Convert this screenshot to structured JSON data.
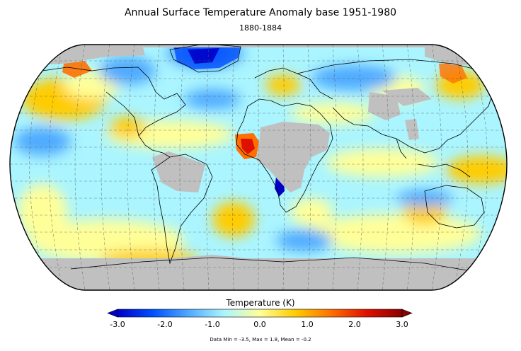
{
  "title": "Annual Surface Temperature Anomaly base 1951-1980",
  "subtitle": "1880-1884",
  "colorbar": {
    "label": "Temperature (K)",
    "ticks": [
      "-3.0",
      "-2.0",
      "-1.0",
      "0.0",
      "1.0",
      "2.0",
      "3.0"
    ],
    "min": -3.0,
    "max": 3.0,
    "colors": [
      "#0000c8",
      "#0050ff",
      "#50aaff",
      "#aaf5ff",
      "#ffff99",
      "#ffcc00",
      "#ff7000",
      "#e01000",
      "#8b0000"
    ]
  },
  "stats": "Data Min = -3.5, Max = 1.8, Mean = -0.2",
  "map": {
    "projection": "robinson",
    "no_data_color": "#c0c0c0",
    "graticule": "dashed"
  }
}
